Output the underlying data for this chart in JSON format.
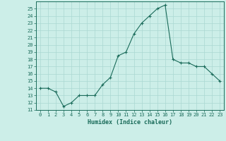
{
  "title": "",
  "xlabel": "Humidex (Indice chaleur)",
  "x": [
    0,
    1,
    2,
    3,
    4,
    5,
    6,
    7,
    8,
    9,
    10,
    11,
    12,
    13,
    14,
    15,
    16,
    17,
    18,
    19,
    20,
    21,
    22,
    23
  ],
  "y": [
    14,
    14,
    13.5,
    11.5,
    12,
    13,
    13,
    13,
    14.5,
    15.5,
    18.5,
    19,
    21.5,
    23,
    24,
    25,
    25.5,
    18,
    17.5,
    17.5,
    17,
    17,
    16,
    15
  ],
  "line_color": "#1a6b5a",
  "marker": "+",
  "marker_size": 3,
  "marker_lw": 0.8,
  "line_width": 0.8,
  "bg_color": "#cceee8",
  "grid_color": "#aad8d2",
  "tick_color": "#1a6b5a",
  "label_color": "#1a6b5a",
  "ylim": [
    11,
    26
  ],
  "xlim": [
    -0.5,
    23.5
  ],
  "yticks": [
    11,
    12,
    13,
    14,
    15,
    16,
    17,
    18,
    19,
    20,
    21,
    22,
    23,
    24,
    25
  ],
  "xticks": [
    0,
    1,
    2,
    3,
    4,
    5,
    6,
    7,
    8,
    9,
    10,
    11,
    12,
    13,
    14,
    15,
    16,
    17,
    18,
    19,
    20,
    21,
    22,
    23
  ],
  "tick_fontsize": 5,
  "xlabel_fontsize": 6
}
